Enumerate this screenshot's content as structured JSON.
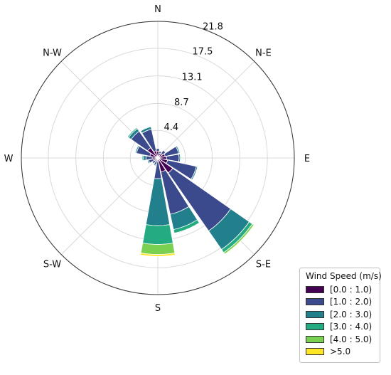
{
  "chart_data": {
    "type": "windrose",
    "directions": [
      "N",
      "NNE",
      "NE",
      "ENE",
      "E",
      "ESE",
      "SE",
      "SSE",
      "S",
      "SSW",
      "SW",
      "WSW",
      "W",
      "WNW",
      "NW",
      "NNW"
    ],
    "direction_labels": [
      "N",
      "N-E",
      "E",
      "S-E",
      "S",
      "S-W",
      "W",
      "N-W"
    ],
    "radial_ticks": [
      4.4,
      8.7,
      13.1,
      17.5,
      21.8
    ],
    "rmax": 21.8,
    "series": [
      {
        "name": "[0.0 : 1.0)",
        "color": "#440154",
        "values": [
          1.1,
          0.8,
          0.9,
          1.2,
          1.4,
          1.6,
          2.9,
          2.3,
          0.6,
          0.5,
          0.6,
          0.7,
          0.9,
          1.3,
          2.0,
          1.2
        ]
      },
      {
        "name": "[1.0 : 2.0)",
        "color": "#3b4a8c",
        "values": [
          0.4,
          0.3,
          0.6,
          2.2,
          2.0,
          4.7,
          11.3,
          6.9,
          2.7,
          0.6,
          0.5,
          0.8,
          1.0,
          2.2,
          3.2,
          3.5
        ]
      },
      {
        "name": "[2.0 : 3.0)",
        "color": "#21808c",
        "values": [
          0.0,
          0.0,
          0.1,
          0.2,
          0.2,
          0.2,
          3.6,
          2.5,
          7.5,
          0.2,
          0.1,
          0.2,
          0.4,
          0.2,
          0.5,
          0.4
        ]
      },
      {
        "name": "[3.0 : 4.0)",
        "color": "#25ab82",
        "values": [
          0.0,
          0.0,
          0.0,
          0.0,
          0.0,
          0.0,
          0.6,
          0.6,
          3.0,
          0.0,
          0.0,
          0.1,
          0.2,
          0.1,
          0.2,
          0.1
        ]
      },
      {
        "name": "[4.0 : 5.0)",
        "color": "#7ad151",
        "values": [
          0.0,
          0.0,
          0.0,
          0.0,
          0.0,
          0.0,
          0.3,
          0.1,
          1.6,
          0.0,
          0.0,
          0.0,
          0.0,
          0.0,
          0.0,
          0.0
        ]
      },
      {
        "name": ">5.0",
        "color": "#fde725",
        "values": [
          0.0,
          0.0,
          0.0,
          0.0,
          0.0,
          0.0,
          0.1,
          0.0,
          0.3,
          0.0,
          0.0,
          0.0,
          0.0,
          0.0,
          0.0,
          0.0
        ]
      }
    ],
    "legend_title": "Wind Speed (m/s)",
    "legend_position": "bottom-right",
    "grid": true
  }
}
